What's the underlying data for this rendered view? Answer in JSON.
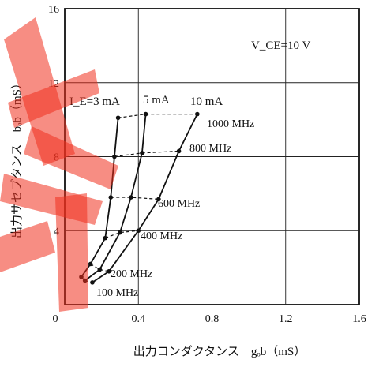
{
  "chart_data": {
    "type": "line",
    "xlabel": "出力コンダクタンス　gₒb（mS）",
    "ylabel": "出力サセプタンス　bₒb（mS）",
    "xlim": [
      0,
      1.6
    ],
    "ylim": [
      0,
      16
    ],
    "x_ticks": [
      "0",
      "0.4",
      "0.8",
      "1.2",
      "1.6"
    ],
    "y_ticks": [
      "4",
      "8",
      "12",
      "16"
    ],
    "grid": true,
    "annotation": "V_CE=10 V",
    "series": [
      {
        "name": "I_E=3 mA",
        "x": [
          0.09,
          0.14,
          0.22,
          0.25,
          0.27,
          0.29
        ],
        "y": [
          1.5,
          2.2,
          3.6,
          5.8,
          8.0,
          10.1
        ]
      },
      {
        "name": "5 mA",
        "x": [
          0.11,
          0.19,
          0.3,
          0.36,
          0.42,
          0.44
        ],
        "y": [
          1.3,
          1.9,
          3.9,
          5.8,
          8.2,
          10.3
        ]
      },
      {
        "name": "10 mA",
        "x": [
          0.15,
          0.24,
          0.4,
          0.51,
          0.62,
          0.72
        ],
        "y": [
          1.2,
          1.8,
          4.0,
          5.7,
          8.3,
          10.3
        ]
      }
    ],
    "frequency_lines": [
      {
        "label": "100 MHz",
        "x": [
          0.09,
          0.11,
          0.15
        ],
        "y": [
          1.5,
          1.3,
          1.2
        ]
      },
      {
        "label": "200 MHz",
        "x": [
          0.14,
          0.19,
          0.24
        ],
        "y": [
          2.2,
          1.9,
          1.8
        ]
      },
      {
        "label": "400 MHz",
        "x": [
          0.22,
          0.3,
          0.4
        ],
        "y": [
          3.6,
          3.9,
          4.0
        ]
      },
      {
        "label": "600 MHz",
        "x": [
          0.25,
          0.36,
          0.51
        ],
        "y": [
          5.8,
          5.8,
          5.7
        ]
      },
      {
        "label": "800 MHz",
        "x": [
          0.27,
          0.42,
          0.62
        ],
        "y": [
          8.0,
          8.2,
          8.3
        ]
      },
      {
        "label": "1000 MHz",
        "x": [
          0.29,
          0.44,
          0.72
        ],
        "y": [
          10.1,
          10.3,
          10.3
        ]
      }
    ]
  }
}
